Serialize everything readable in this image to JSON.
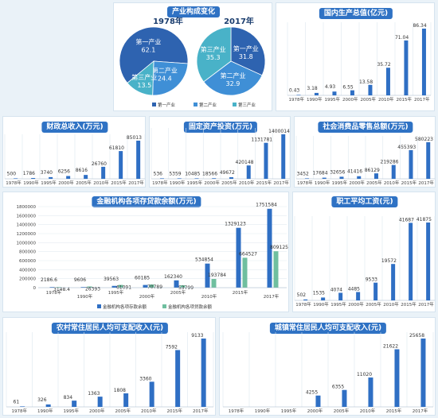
{
  "colors": {
    "bar": "#2f6fc4",
    "bar_loan": "#6fbf9f",
    "pie_primary": "#2e63b0",
    "pie_secondary": "#3f8fd6",
    "pie_tertiary": "#49b2c8",
    "title_bg": "#2f72c4"
  },
  "chart_data": [
    {
      "id": "industry",
      "type": "pie",
      "title": "产业构成变化",
      "charts": [
        {
          "title": "1978年",
          "slices": [
            {
              "name": "第一产业",
              "value": 62.1
            },
            {
              "name": "第二产业",
              "value": 24.4
            },
            {
              "name": "第三产业",
              "value": 13.5
            }
          ]
        },
        {
          "title": "2017年",
          "slices": [
            {
              "name": "第一产业",
              "value": 31.8
            },
            {
              "name": "第二产业",
              "value": 32.9
            },
            {
              "name": "第三产业",
              "value": 35.3
            }
          ]
        }
      ],
      "legend": [
        "第一产业",
        "第二产业",
        "第三产业"
      ]
    },
    {
      "id": "gdp",
      "type": "bar",
      "title": "国内生产总值(亿元)",
      "categories": [
        "1978年",
        "1990年",
        "1995年",
        "2000年",
        "2005年",
        "2010年",
        "2015年",
        "2017年"
      ],
      "values": [
        0.43,
        3.18,
        4.93,
        6.55,
        13.58,
        35.72,
        71.04,
        86.34
      ],
      "labels": [
        "0.43",
        "3.18",
        "4.93",
        "6.55",
        "13.58",
        "35.72",
        "71.04",
        "86.34"
      ]
    },
    {
      "id": "fiscal",
      "type": "bar",
      "title": "财政总收入(万元)",
      "categories": [
        "1978年",
        "1990年",
        "1995年",
        "2000年",
        "2005年",
        "2010年",
        "2015年",
        "2017年"
      ],
      "values": [
        500,
        1786,
        3740,
        6256,
        8616,
        26760,
        61810,
        85013
      ],
      "labels": [
        "500",
        "1786",
        "3740",
        "6256",
        "8616",
        "26760",
        "61810",
        "85013"
      ]
    },
    {
      "id": "investment",
      "type": "bar",
      "title": "固定资产投资(万元)",
      "categories": [
        "1978年",
        "1990年",
        "1995年",
        "2000年",
        "2005年",
        "2010年",
        "2015年",
        "2017年"
      ],
      "values": [
        536,
        5359,
        10485,
        18566,
        49672,
        420148,
        1131781,
        1400014
      ],
      "labels": [
        "536",
        "5359",
        "10485",
        "18566",
        "49672",
        "420148",
        "1131781",
        "1400014"
      ]
    },
    {
      "id": "retail",
      "type": "bar",
      "title": "社会消费品零售总额(万元)",
      "categories": [
        "1978年",
        "1990年",
        "1995年",
        "2000年",
        "2005年",
        "2010年",
        "2015年",
        "2017年"
      ],
      "values": [
        3452,
        17684,
        32656,
        41416,
        86129,
        219286,
        455393,
        580223
      ],
      "labels": [
        "3452",
        "17684",
        "32656",
        "41416",
        "86129",
        "219286",
        "455393",
        "580223"
      ]
    },
    {
      "id": "finance",
      "type": "bar",
      "title": "金融机构各项存贷款余额(万元)",
      "categories": [
        "1978年",
        "1990年",
        "1995年",
        "2000年",
        "2005年",
        "2010年",
        "2015年",
        "2017年"
      ],
      "series": [
        {
          "name": "金融机构各项存款余额",
          "values": [
            2186.6,
            9606,
            39563,
            60185,
            162340,
            534854,
            1329123,
            1751584
          ],
          "labels": [
            "2186.6",
            "9606",
            "39563",
            "60185",
            "162340",
            "534854",
            "1329123",
            "1751584"
          ]
        },
        {
          "name": "金融机构各项贷款余额",
          "values": [
            3148.4,
            26393,
            61091,
            70789,
            53799,
            193784,
            664527,
            809125
          ],
          "labels": [
            "3148.4",
            "26393",
            "61091",
            "70789",
            "53799",
            "193784",
            "664527",
            "809125"
          ]
        }
      ],
      "ylim": [
        0,
        1800000
      ],
      "yticks": [
        "0",
        "200000",
        "400000",
        "600000",
        "800000",
        "1000000",
        "1200000",
        "1400000",
        "1600000",
        "1800000"
      ]
    },
    {
      "id": "wage",
      "type": "bar",
      "title": "职工平均工资(元)",
      "categories": [
        "1978年",
        "1990年",
        "1995年",
        "2000年",
        "2005年",
        "2010年",
        "2015年",
        "2017年"
      ],
      "values": [
        502,
        1535,
        4074,
        4485,
        9533,
        19572,
        41687,
        41875
      ],
      "labels": [
        "502",
        "1535",
        "4074",
        "4485",
        "9533",
        "19572",
        "41687",
        "41875"
      ]
    },
    {
      "id": "rural",
      "type": "bar",
      "title": "农村常住居民人均可支配收入(元)",
      "categories": [
        "1978年",
        "1990年",
        "1995年",
        "2000年",
        "2005年",
        "2010年",
        "2015年",
        "2017年"
      ],
      "values": [
        61,
        326,
        834,
        1363,
        1808,
        3360,
        7592,
        9133
      ],
      "labels": [
        "61",
        "326",
        "834",
        "1363",
        "1808",
        "3360",
        "7592",
        "9133"
      ]
    },
    {
      "id": "urban",
      "type": "bar",
      "title": "城镇常住居民人均可支配收入(元)",
      "categories": [
        "1978年",
        "1990年",
        "1995年",
        "2000年",
        "2005年",
        "2010年",
        "2015年",
        "2017年"
      ],
      "values": [
        null,
        null,
        null,
        4255,
        6355,
        11020,
        21622,
        25658
      ],
      "labels": [
        "",
        "",
        "",
        "4255",
        "6355",
        "11020",
        "21622",
        "25658"
      ]
    }
  ]
}
